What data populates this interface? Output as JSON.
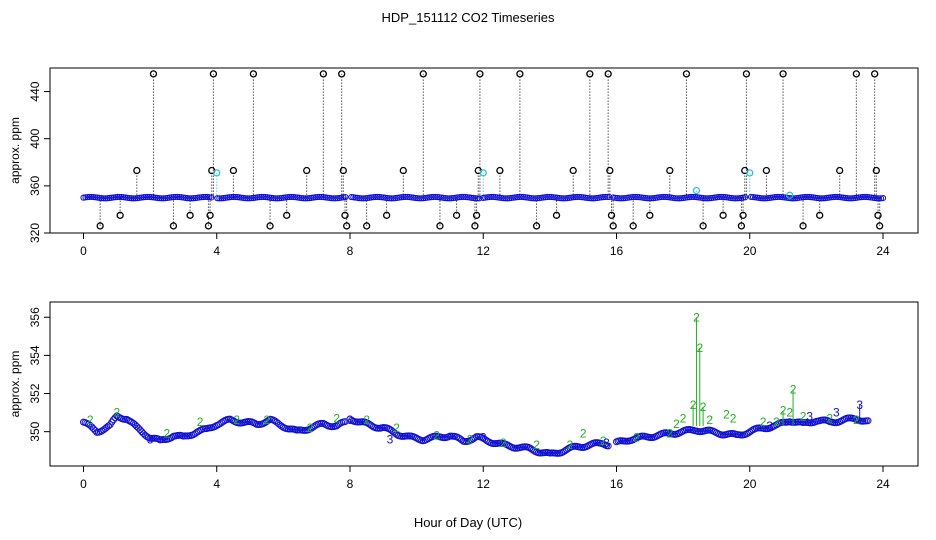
{
  "title": "HDP_151112  CO2 Timeseries",
  "xlabel": "Hour of Day (UTC)",
  "chart_data": [
    {
      "type": "scatter",
      "ylabel": "approx. ppm",
      "xlim": [
        0,
        24
      ],
      "ylim": [
        320,
        460
      ],
      "xticks": [
        "0",
        "4",
        "8",
        "12",
        "16",
        "20",
        "24"
      ],
      "yticks": [
        "320",
        "360",
        "400",
        "440"
      ],
      "xtick_values": [
        0,
        4,
        8,
        12,
        16,
        20,
        24
      ],
      "ytick_values": [
        320,
        360,
        400,
        440
      ],
      "grid": false,
      "colors": {
        "baseline": "#1010d0",
        "outlier": "#000000",
        "secondary": "#20c0d0"
      },
      "baseline": {
        "x_start": 0.0,
        "x_end": 24.0,
        "value": 350
      },
      "gaps": [
        [
          3.9,
          4.0
        ],
        [
          7.9,
          8.0
        ],
        [
          11.9,
          12.0
        ],
        [
          15.8,
          15.9
        ],
        [
          19.9,
          20.0
        ]
      ],
      "outliers": [
        {
          "x": 0.5,
          "y": 326
        },
        {
          "x": 1.1,
          "y": 335
        },
        {
          "x": 1.6,
          "y": 373
        },
        {
          "x": 2.1,
          "y": 455
        },
        {
          "x": 2.7,
          "y": 326
        },
        {
          "x": 3.2,
          "y": 335
        },
        {
          "x": 3.75,
          "y": 326
        },
        {
          "x": 3.8,
          "y": 335
        },
        {
          "x": 3.85,
          "y": 373
        },
        {
          "x": 3.9,
          "y": 455
        },
        {
          "x": 4.5,
          "y": 373
        },
        {
          "x": 5.1,
          "y": 455
        },
        {
          "x": 5.6,
          "y": 326
        },
        {
          "x": 6.1,
          "y": 335
        },
        {
          "x": 6.7,
          "y": 373
        },
        {
          "x": 7.2,
          "y": 455
        },
        {
          "x": 7.75,
          "y": 455
        },
        {
          "x": 7.8,
          "y": 373
        },
        {
          "x": 7.85,
          "y": 335
        },
        {
          "x": 7.9,
          "y": 326
        },
        {
          "x": 8.5,
          "y": 326
        },
        {
          "x": 9.1,
          "y": 335
        },
        {
          "x": 9.6,
          "y": 373
        },
        {
          "x": 10.2,
          "y": 455
        },
        {
          "x": 10.7,
          "y": 326
        },
        {
          "x": 11.2,
          "y": 335
        },
        {
          "x": 11.75,
          "y": 326
        },
        {
          "x": 11.8,
          "y": 335
        },
        {
          "x": 11.85,
          "y": 373
        },
        {
          "x": 11.9,
          "y": 455
        },
        {
          "x": 12.5,
          "y": 373
        },
        {
          "x": 13.1,
          "y": 455
        },
        {
          "x": 13.6,
          "y": 326
        },
        {
          "x": 14.2,
          "y": 335
        },
        {
          "x": 14.7,
          "y": 373
        },
        {
          "x": 15.2,
          "y": 455
        },
        {
          "x": 15.75,
          "y": 455
        },
        {
          "x": 15.8,
          "y": 373
        },
        {
          "x": 15.85,
          "y": 335
        },
        {
          "x": 15.9,
          "y": 326
        },
        {
          "x": 16.5,
          "y": 326
        },
        {
          "x": 17.0,
          "y": 335
        },
        {
          "x": 17.6,
          "y": 373
        },
        {
          "x": 18.1,
          "y": 455
        },
        {
          "x": 18.6,
          "y": 326
        },
        {
          "x": 19.2,
          "y": 335
        },
        {
          "x": 19.75,
          "y": 326
        },
        {
          "x": 19.8,
          "y": 335
        },
        {
          "x": 19.85,
          "y": 373
        },
        {
          "x": 19.9,
          "y": 455
        },
        {
          "x": 20.5,
          "y": 373
        },
        {
          "x": 21.0,
          "y": 455
        },
        {
          "x": 21.6,
          "y": 326
        },
        {
          "x": 22.1,
          "y": 335
        },
        {
          "x": 22.7,
          "y": 373
        },
        {
          "x": 23.2,
          "y": 455
        },
        {
          "x": 23.75,
          "y": 455
        },
        {
          "x": 23.8,
          "y": 373
        },
        {
          "x": 23.85,
          "y": 335
        },
        {
          "x": 23.9,
          "y": 326
        }
      ],
      "secondary_points": [
        {
          "x": 4.0,
          "y": 371
        },
        {
          "x": 12.0,
          "y": 371
        },
        {
          "x": 18.4,
          "y": 356
        },
        {
          "x": 20.0,
          "y": 371
        },
        {
          "x": 21.2,
          "y": 352
        }
      ]
    },
    {
      "type": "line",
      "ylabel": "approx. ppm",
      "xlim": [
        0,
        24
      ],
      "ylim": [
        348.2,
        356.8
      ],
      "xticks": [
        "0",
        "4",
        "8",
        "12",
        "16",
        "20",
        "24"
      ],
      "yticks": [
        "350",
        "352",
        "354",
        "356"
      ],
      "xtick_values": [
        0,
        4,
        8,
        12,
        16,
        20,
        24
      ],
      "ytick_values": [
        350,
        352,
        354,
        356
      ],
      "grid": false,
      "gaps": [
        [
          7.9,
          8.0
        ],
        [
          15.8,
          16.0
        ]
      ],
      "series": [
        {
          "name": "1",
          "color": "#1010d0",
          "marker": "circle",
          "x": [
            0.0,
            0.4,
            0.8,
            1.0,
            1.3,
            1.6,
            2.0,
            2.3,
            2.7,
            3.0,
            3.4,
            3.7,
            4.0,
            4.4,
            4.8,
            5.2,
            5.6,
            6.0,
            6.4,
            6.8,
            7.2,
            7.6,
            7.9,
            8.0,
            8.3,
            8.7,
            9.0,
            9.4,
            9.8,
            10.2,
            10.6,
            11.0,
            11.4,
            11.8,
            12.2,
            12.6,
            13.0,
            13.4,
            13.8,
            14.0,
            14.4,
            14.8,
            15.2,
            15.6,
            15.8,
            16.0,
            16.4,
            16.8,
            17.2,
            17.6,
            18.0,
            18.4,
            18.8,
            19.2,
            19.6,
            20.0,
            20.4,
            20.8,
            21.2,
            21.6,
            22.0,
            22.4,
            22.8,
            23.2,
            23.6
          ],
          "y": [
            350.5,
            350.0,
            350.3,
            350.8,
            350.7,
            350.2,
            349.7,
            349.5,
            349.8,
            349.7,
            350.0,
            350.1,
            350.4,
            350.6,
            350.5,
            350.4,
            350.6,
            350.3,
            350.0,
            350.2,
            350.4,
            350.3,
            350.5,
            350.7,
            350.5,
            350.3,
            350.2,
            349.9,
            349.7,
            349.6,
            349.7,
            349.8,
            349.5,
            349.7,
            349.5,
            349.3,
            349.2,
            349.1,
            348.9,
            348.8,
            349.0,
            349.2,
            349.3,
            349.4,
            349.3,
            349.4,
            349.6,
            349.7,
            349.8,
            349.9,
            350.0,
            350.1,
            350.0,
            349.9,
            349.8,
            350.0,
            350.2,
            350.3,
            350.6,
            350.4,
            350.6,
            350.5,
            350.6,
            350.7,
            350.5
          ]
        },
        {
          "name": "2",
          "color": "#20b020",
          "marker": "2",
          "x": [
            0.2,
            1.0,
            2.5,
            3.5,
            4.6,
            5.5,
            6.8,
            7.6,
            8.5,
            9.4,
            10.6,
            11.6,
            12.6,
            13.6,
            14.6,
            15.0,
            15.6,
            16.6,
            17.6,
            17.8,
            18.0,
            18.3,
            18.4,
            18.5,
            18.6,
            18.8,
            19.3,
            19.5,
            20.4,
            20.8,
            21.0,
            21.2,
            21.3,
            21.6,
            22.4,
            23.2
          ],
          "y": [
            350.6,
            351.0,
            349.9,
            350.5,
            350.6,
            350.6,
            350.2,
            350.7,
            350.6,
            350.2,
            349.8,
            349.6,
            349.4,
            349.3,
            349.3,
            349.9,
            349.5,
            349.7,
            349.9,
            350.4,
            350.7,
            351.4,
            356.0,
            354.4,
            351.3,
            350.6,
            350.9,
            350.7,
            350.5,
            350.5,
            351.1,
            351.0,
            352.2,
            350.8,
            350.7,
            350.6
          ]
        },
        {
          "name": "3",
          "color": "#1010d0",
          "marker": "3",
          "x": [
            2.0,
            8.0,
            9.2,
            12.0,
            15.7,
            20.6,
            21.8,
            22.6,
            23.3
          ],
          "y": [
            349.6,
            350.6,
            349.6,
            349.7,
            349.4,
            350.3,
            350.8,
            351.0,
            351.4
          ]
        }
      ]
    }
  ]
}
